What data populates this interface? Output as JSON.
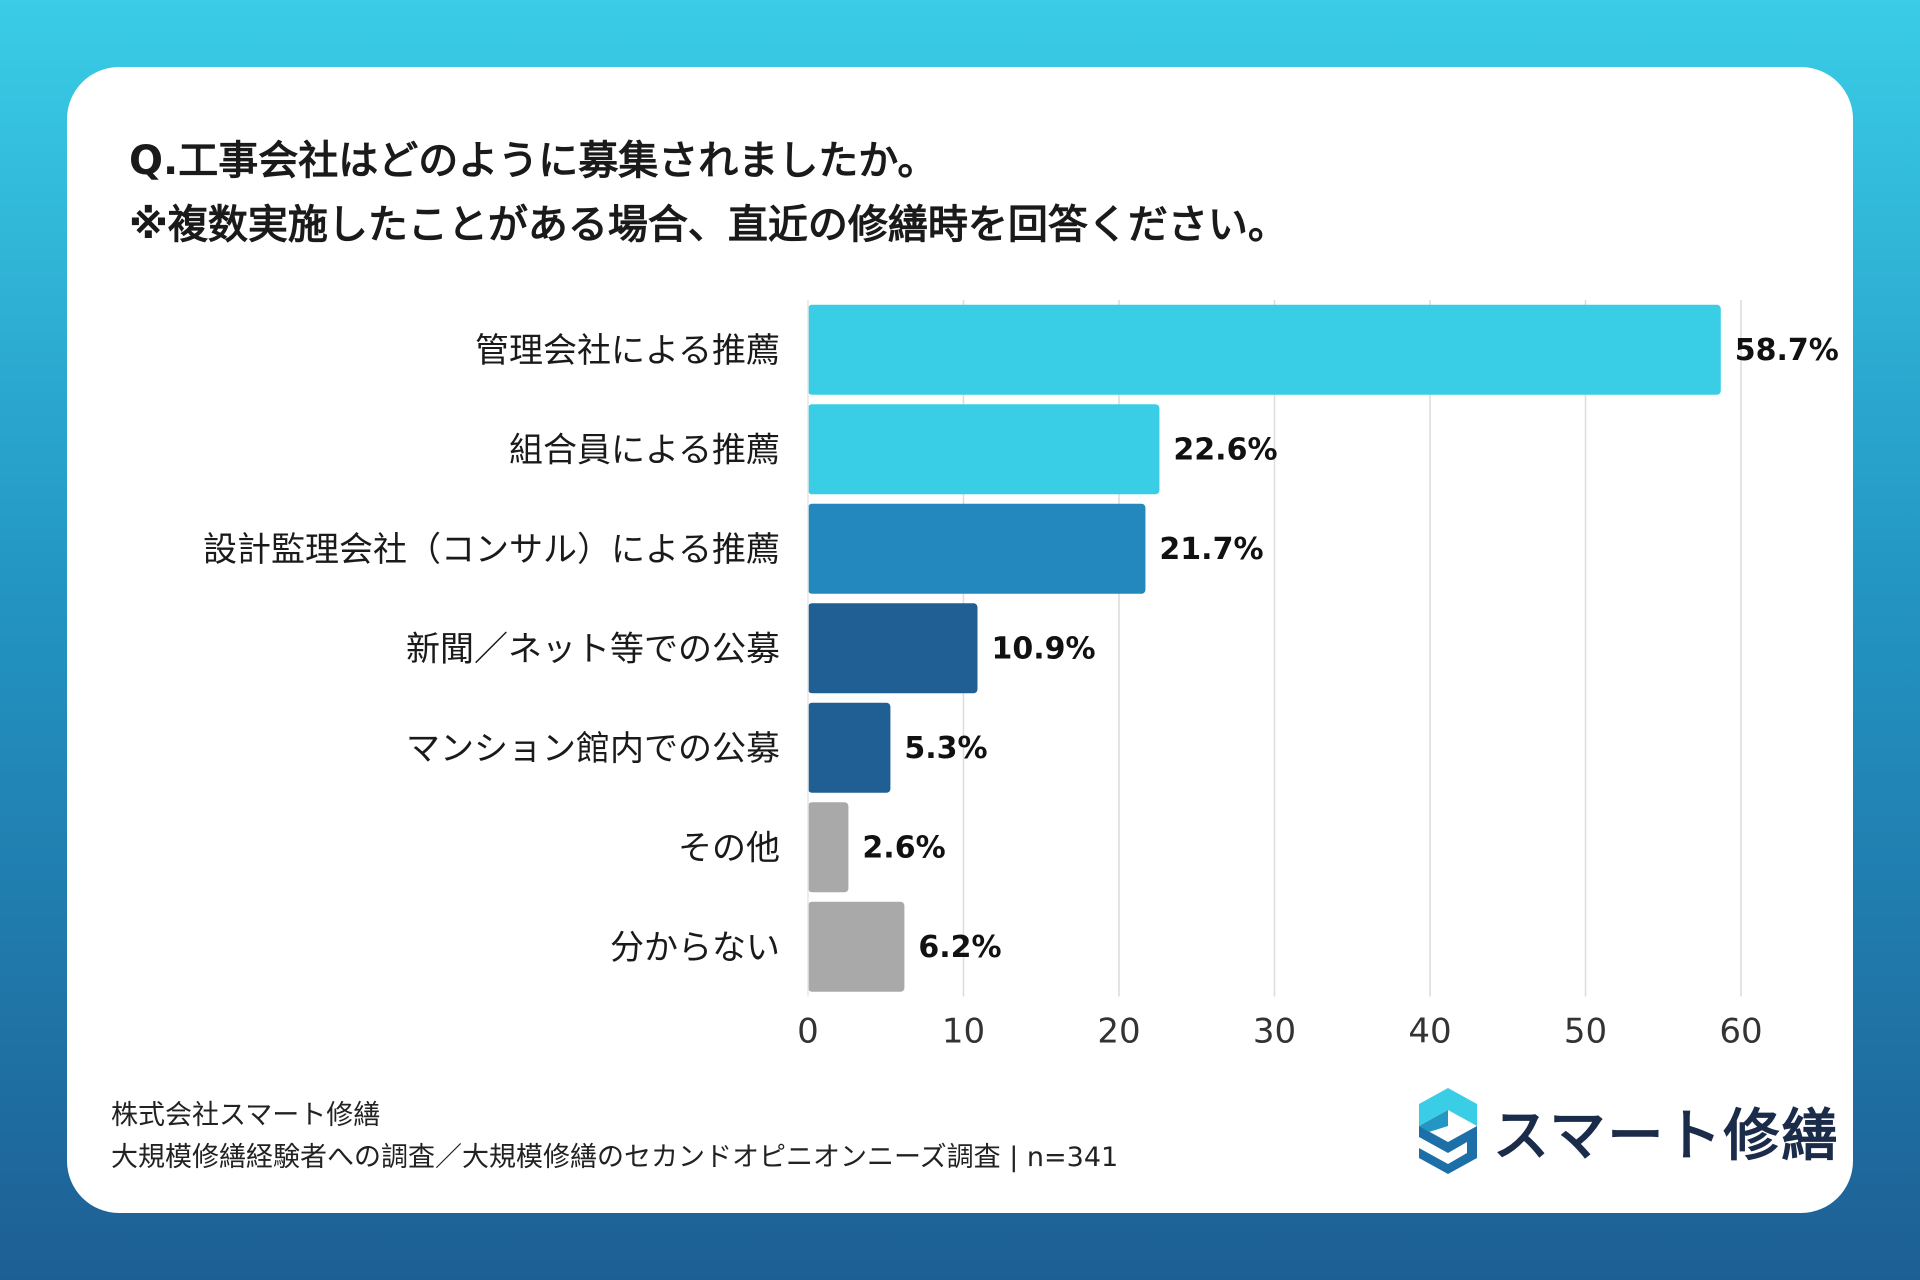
{
  "title": {
    "line1": "Q.工事会社はどのように募集されましたか。",
    "line2": "※複数実施したことがある場合、直近の修繕時を回答ください。"
  },
  "chart_data": {
    "type": "bar",
    "orientation": "horizontal",
    "categories": [
      "管理会社による推薦",
      "組合員による推薦",
      "設計監理会社（コンサル）による推薦",
      "新聞／ネット等での公募",
      "マンション館内での公募",
      "その他",
      "分からない"
    ],
    "values": [
      58.7,
      22.6,
      21.7,
      10.9,
      5.3,
      2.6,
      6.2
    ],
    "value_labels": [
      "58.7%",
      "22.6%",
      "21.7%",
      "10.9%",
      "5.3%",
      "2.6%",
      "6.2%"
    ],
    "colors": [
      "#3acde6",
      "#3acde6",
      "#2288bd",
      "#1f5f93",
      "#1f5f93",
      "#a9a9a9",
      "#a9a9a9"
    ],
    "xlim": [
      0,
      60
    ],
    "xticks": [
      0,
      10,
      20,
      30,
      40,
      50,
      60
    ],
    "grid": true
  },
  "footer": {
    "company": "株式会社スマート修繕",
    "source": "大規模修繕経験者への調査／大規模修繕のセカンドオピニオンニーズ調査 | n=341"
  },
  "logo": {
    "text": "スマート修繕",
    "colors": [
      "#3acde6",
      "#1d6fa8",
      "#1b2b4a"
    ]
  }
}
